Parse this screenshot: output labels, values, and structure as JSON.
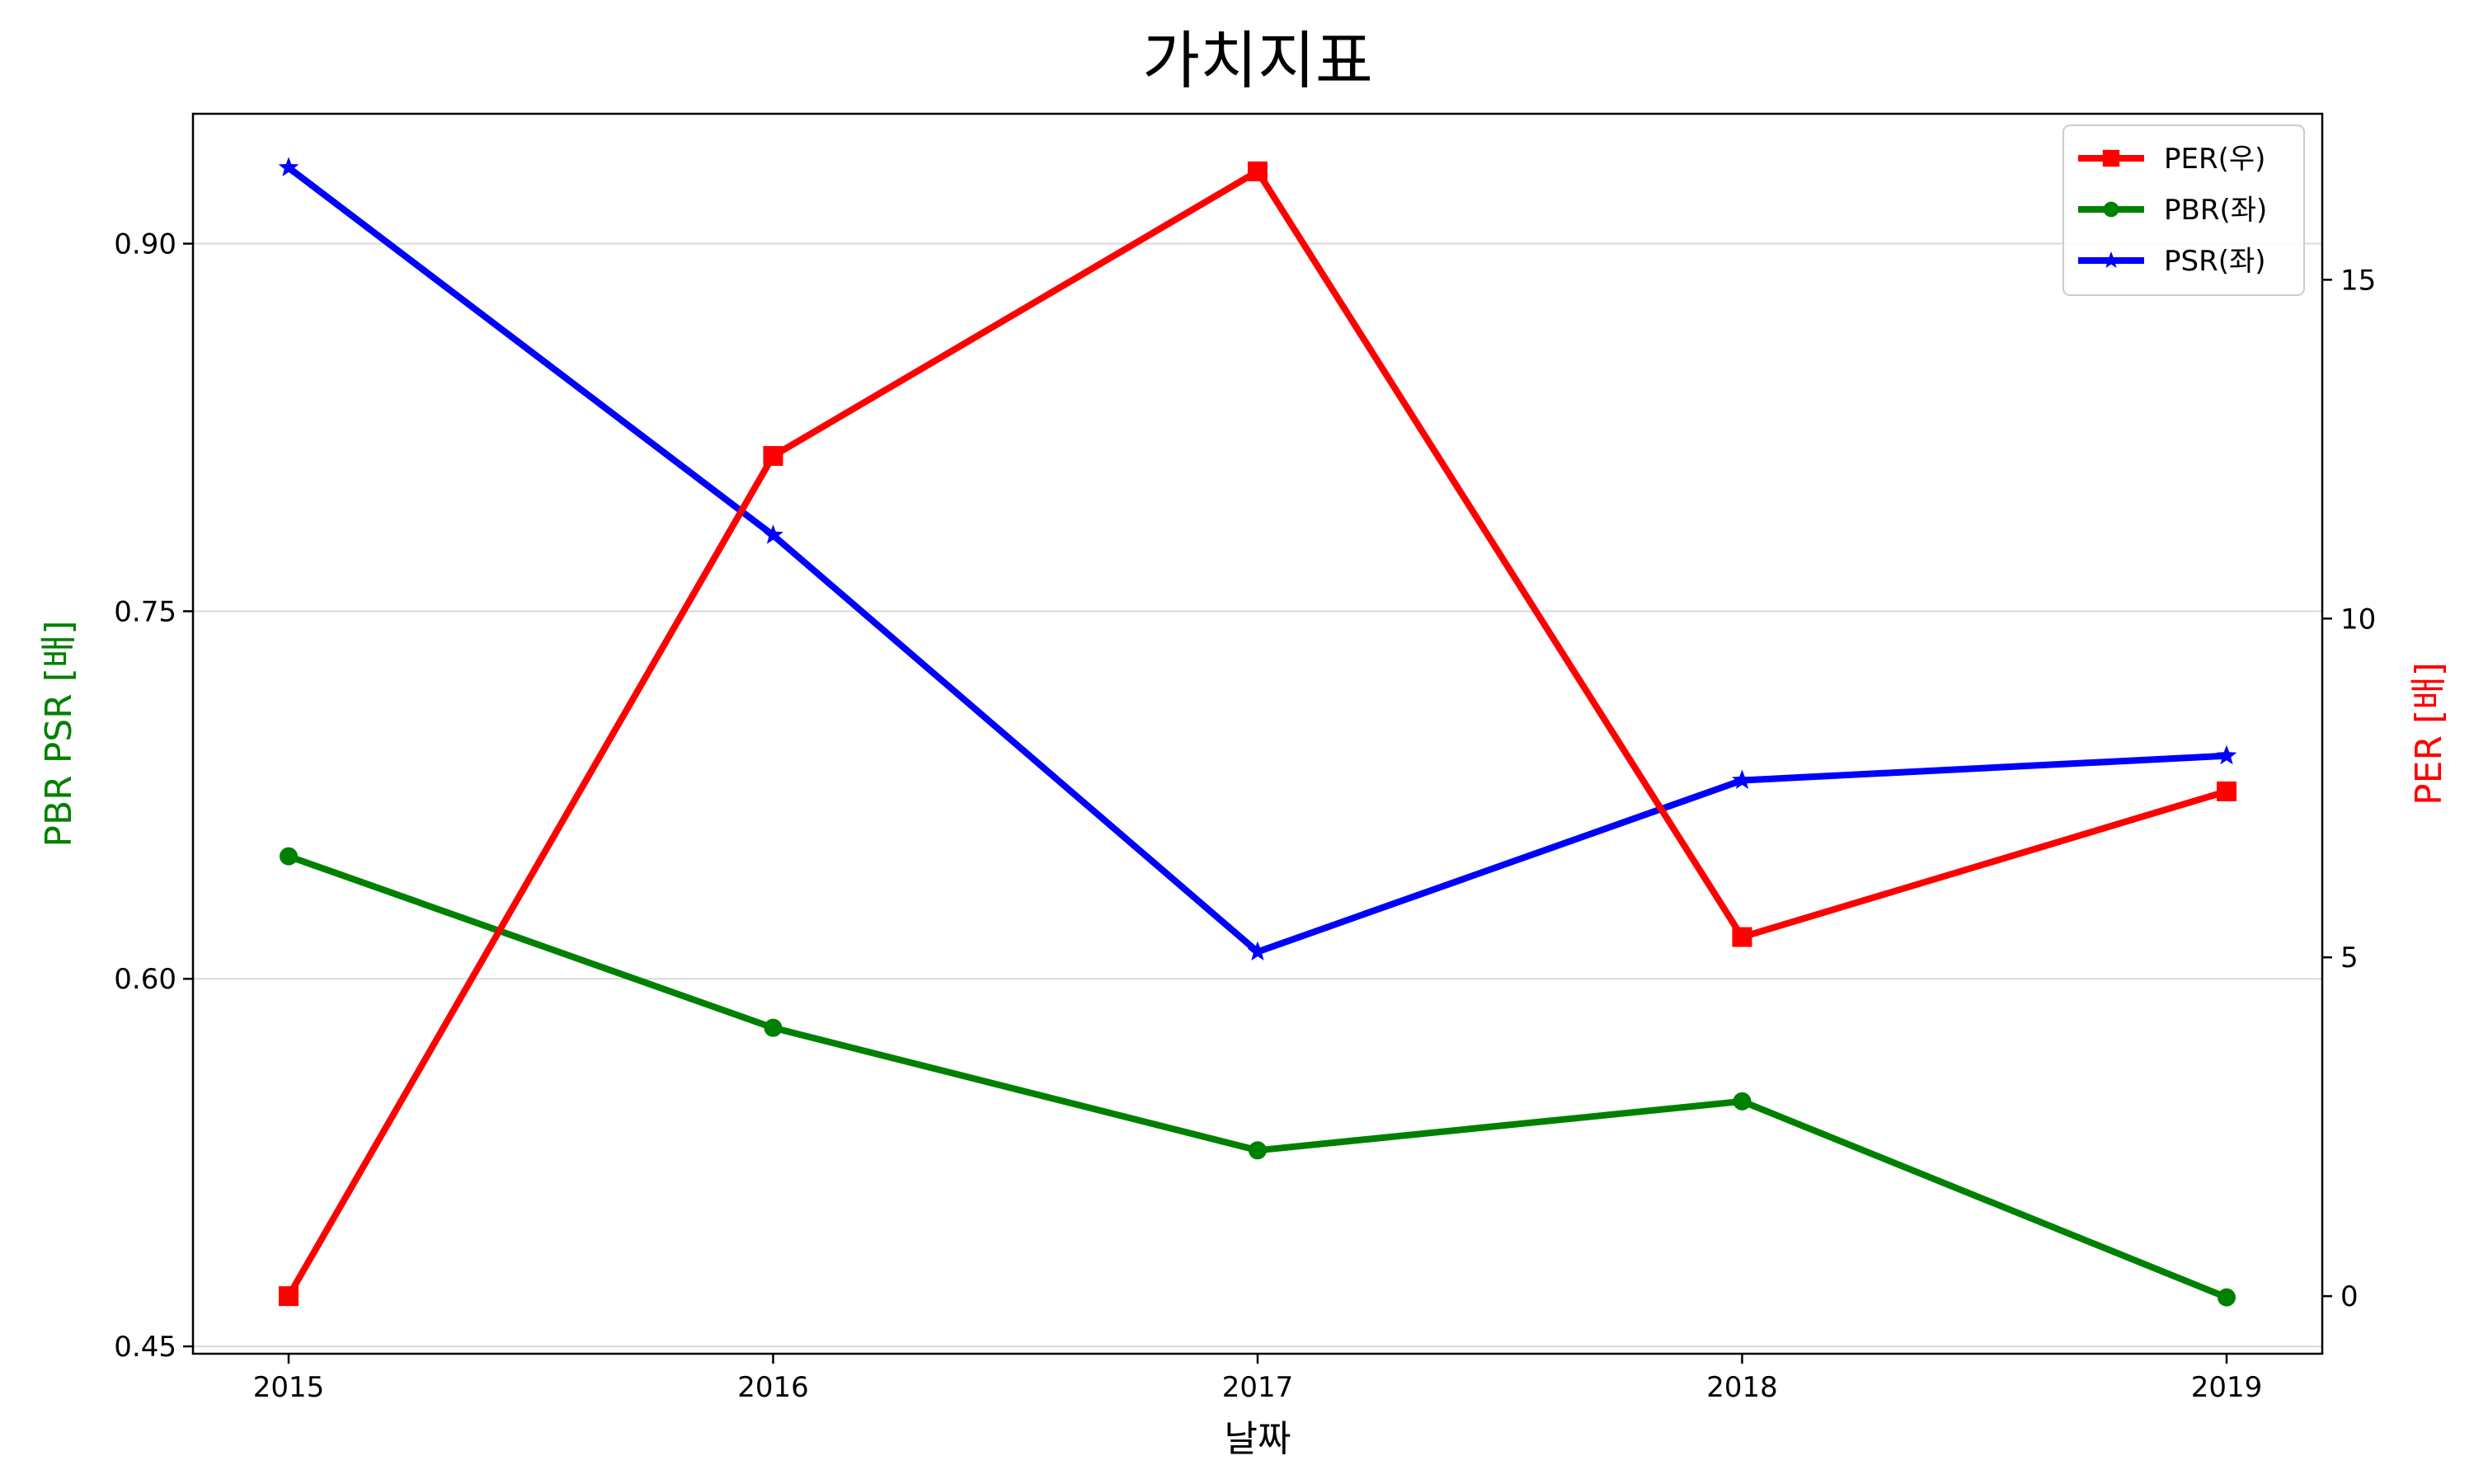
{
  "chart_data": {
    "type": "line",
    "title": "가치지표",
    "xlabel": "날짜",
    "ylabel_left": "PBR PSR [배]",
    "ylabel_right": "PER [배]",
    "categories": [
      "2015",
      "2016",
      "2017",
      "2018",
      "2019"
    ],
    "y_left": {
      "ticks": [
        "0.45",
        "0.60",
        "0.75",
        "0.90"
      ],
      "range": [
        0.447,
        0.953
      ]
    },
    "y_right": {
      "ticks": [
        "0",
        "5",
        "10",
        "15"
      ],
      "range": [
        -0.85,
        17.45
      ]
    },
    "grid": "horizontal (left axis)",
    "legend_position": "top-right",
    "series": [
      {
        "name": "PER(우)",
        "axis": "right",
        "marker": "square",
        "color": "#ff0000",
        "values": [
          0.0,
          12.4,
          16.6,
          5.3,
          7.45
        ]
      },
      {
        "name": "PBR(좌)",
        "axis": "left",
        "marker": "circle",
        "color": "#008000",
        "values": [
          0.65,
          0.58,
          0.53,
          0.55,
          0.47
        ]
      },
      {
        "name": "PSR(좌)",
        "axis": "left",
        "marker": "star",
        "color": "#0000ff",
        "values": [
          0.931,
          0.781,
          0.611,
          0.681,
          0.691
        ]
      }
    ],
    "colors": {
      "left_label": "#008000",
      "right_label": "#ff0000"
    }
  }
}
